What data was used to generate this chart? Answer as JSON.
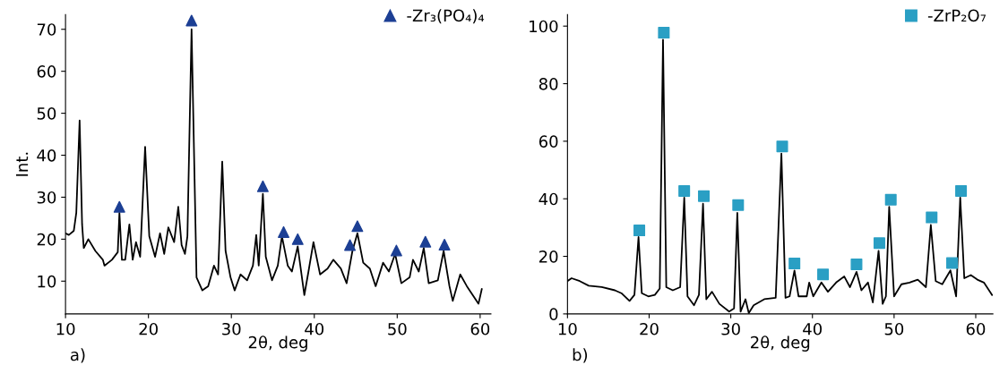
{
  "chart_data": [
    {
      "type": "line",
      "xlabel": "2θ, deg",
      "ylabel": "Int.",
      "annotations": [
        "a)"
      ],
      "xlim": [
        10,
        61.3
      ],
      "ylim": [
        2.2,
        73.5
      ],
      "xticks": [
        10,
        20,
        30,
        40,
        50,
        60
      ],
      "yticks": [
        10,
        20,
        30,
        40,
        50,
        60,
        70
      ],
      "legend": "top right",
      "grid": false,
      "series": [
        {
          "color": "#000000",
          "marker": "none",
          "line_style": "solid",
          "x": [
            10,
            10.4,
            11,
            11.3,
            11.7,
            12.0,
            12.2,
            12.75,
            13.6,
            14.5,
            14.7,
            15.6,
            16.3,
            16.5,
            16.8,
            17.2,
            17.7,
            18.1,
            18.5,
            19.0,
            19.6,
            20.1,
            20.8,
            21.4,
            21.9,
            22.4,
            23.1,
            23.6,
            24.0,
            24.4,
            24.7,
            25.2,
            25.8,
            26.5,
            27.2,
            27.9,
            28.4,
            28.9,
            29.3,
            29.9,
            30.4,
            31.1,
            31.9,
            32.6,
            33.0,
            33.3,
            33.8,
            34.15,
            34.9,
            35.6,
            36.1,
            36.8,
            37.3,
            38.0,
            38.8,
            39.3,
            39.9,
            40.7,
            41.6,
            42.3,
            43.2,
            43.9,
            44.6,
            45.2,
            45.9,
            46.7,
            47.4,
            48.3,
            49.0,
            49.75,
            50.5,
            51.5,
            51.9,
            52.6,
            53.2,
            53.8,
            54.9,
            55.6,
            56.3,
            56.7,
            57.6,
            58.4,
            59.1,
            59.8,
            60.2
          ],
          "values": [
            21.4,
            21,
            22,
            26.3,
            48.3,
            23.5,
            17.9,
            20,
            17.2,
            15.1,
            13.7,
            15.1,
            16.9,
            26.3,
            15.1,
            15.1,
            23.5,
            15.1,
            19.3,
            15.8,
            42,
            20.7,
            15.8,
            21.4,
            16.5,
            22.8,
            19.3,
            27.7,
            18.6,
            16.5,
            20.7,
            70,
            10.9,
            7.8,
            8.8,
            13.7,
            11.6,
            38.5,
            17.2,
            10.9,
            7.8,
            11.6,
            10.2,
            13.7,
            21,
            13.7,
            30.8,
            15.8,
            10.2,
            13.7,
            20.7,
            13.7,
            12.3,
            18.3,
            6.7,
            12.3,
            19.3,
            11.6,
            13,
            15.1,
            13,
            9.5,
            17.2,
            21.4,
            14.4,
            13,
            8.8,
            14.4,
            12.3,
            16.5,
            9.5,
            10.9,
            15.1,
            12.3,
            17.9,
            9.5,
            10.2,
            17.2,
            8.8,
            5.3,
            11.6,
            8.8,
            6.7,
            4.6,
            8.1
          ]
        },
        {
          "type": "scatter",
          "name": "-Zr₃(PO₄)₄",
          "color": "#1c3f94",
          "marker": "triangle",
          "x": [
            16.5,
            25.2,
            33.8,
            36.3,
            38.0,
            44.3,
            45.2,
            49.9,
            53.4,
            55.7
          ],
          "values": [
            27.7,
            72.1,
            32.6,
            21.7,
            20.0,
            18.6,
            23.1,
            17.3,
            19.4,
            18.7
          ]
        }
      ]
    },
    {
      "type": "line",
      "xlabel": "2θ, deg",
      "annotations": [
        "b)"
      ],
      "xlim": [
        10,
        62.1
      ],
      "ylim": [
        0,
        104
      ],
      "xticks": [
        10,
        20,
        30,
        40,
        50,
        60
      ],
      "yticks": [
        0,
        20,
        40,
        60,
        80,
        100
      ],
      "legend": "top right",
      "grid": false,
      "series": [
        {
          "color": "#000000",
          "marker": "none",
          "line_style": "solid",
          "x": [
            10,
            10.5,
            11.5,
            12.6,
            14.2,
            15.8,
            16.6,
            17.6,
            18.2,
            18.7,
            19.1,
            19.9,
            20.7,
            21.3,
            21.7,
            22.1,
            22.9,
            23.8,
            24.3,
            24.7,
            25.5,
            26.1,
            26.6,
            27.0,
            27.7,
            28.6,
            29.8,
            30.4,
            30.8,
            31.2,
            31.8,
            32.2,
            32.8,
            34.1,
            35.5,
            36.2,
            36.7,
            37.2,
            37.8,
            38.3,
            39.3,
            39.6,
            40.1,
            41.1,
            41.9,
            42.9,
            43.9,
            44.6,
            45.4,
            46.0,
            46.8,
            47.4,
            48.1,
            48.6,
            49.0,
            49.4,
            50.0,
            50.9,
            51.9,
            52.9,
            53.9,
            54.5,
            55.1,
            55.9,
            56.9,
            57.6,
            58.1,
            58.6,
            59.4,
            60.2,
            61.0,
            62.0
          ],
          "values": [
            11.4,
            12.4,
            11.4,
            9.8,
            9.3,
            8.2,
            7.2,
            4.5,
            6.6,
            26.7,
            7.2,
            6.1,
            6.6,
            8.8,
            95.3,
            9.3,
            8.2,
            9.3,
            40.4,
            6.1,
            3.0,
            6.6,
            38.3,
            5.1,
            7.7,
            3.5,
            0.8,
            1.9,
            35.1,
            0.8,
            5.1,
            0.3,
            3.0,
            5.1,
            5.6,
            55.7,
            5.6,
            6.1,
            15.1,
            6.1,
            6.1,
            10.9,
            6.1,
            10.9,
            7.7,
            10.9,
            13.0,
            9.3,
            14.6,
            8.2,
            10.9,
            4.0,
            21.9,
            3.5,
            6.1,
            37.2,
            6.1,
            10.3,
            10.9,
            11.9,
            9.3,
            30.9,
            11.4,
            10.3,
            15.1,
            6.1,
            40.4,
            12.4,
            13.5,
            11.9,
            10.9,
            6.6
          ]
        },
        {
          "type": "scatter",
          "name": "-ZrP₂O₇",
          "color": "#2a9fc4",
          "marker": "square",
          "x": [
            18.8,
            21.8,
            24.3,
            26.7,
            30.9,
            36.3,
            37.8,
            41.3,
            45.4,
            48.2,
            49.6,
            54.6,
            57.1,
            58.2
          ],
          "values": [
            29.0,
            97.7,
            42.7,
            40.9,
            37.8,
            58.2,
            17.5,
            13.7,
            17.2,
            24.6,
            39.7,
            33.5,
            17.7,
            42.7
          ]
        }
      ]
    }
  ]
}
